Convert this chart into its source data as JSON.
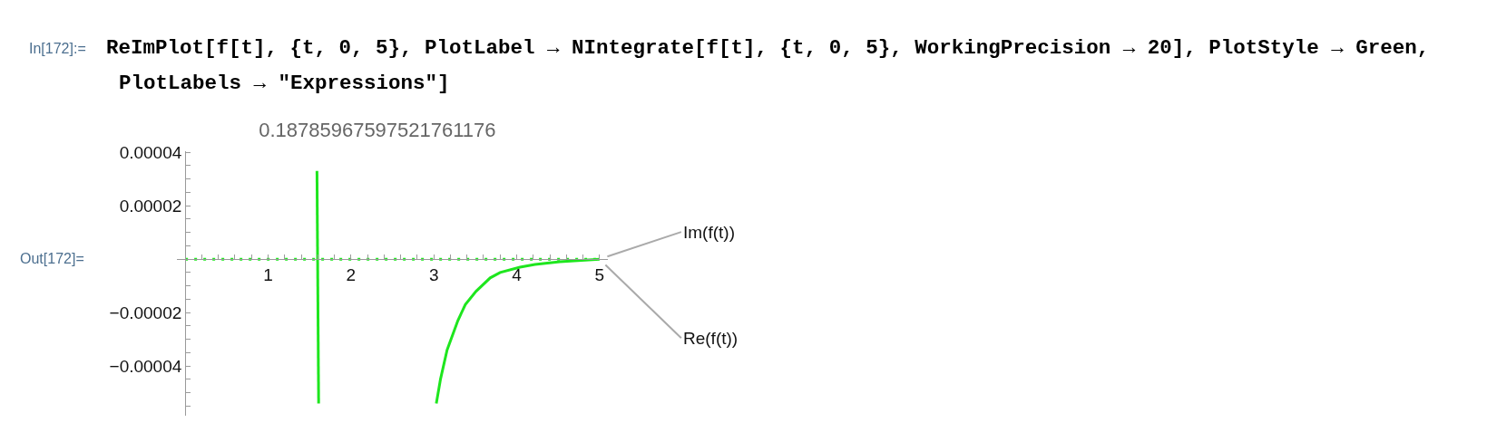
{
  "chart_data": {
    "type": "line",
    "title": "0.18785967597521761176",
    "annotations": [
      "In[172]:=",
      "ReImPlot[f[t], {t, 0, 5}, PlotLabel → NIntegrate[f[t], {t, 0, 5}, WorkingPrecision → 20], PlotStyle → Green,",
      "PlotLabels → \"Expressions\"]",
      "Out[172]="
    ],
    "xlim": [
      -0.1,
      5.1
    ],
    "xticks": [
      {
        "value": 0.2,
        "label": null
      },
      {
        "value": 0.4,
        "label": null
      },
      {
        "value": 0.6,
        "label": null
      },
      {
        "value": 0.8,
        "label": null
      },
      1,
      {
        "value": 1.2,
        "label": null
      },
      {
        "value": 1.4,
        "label": null
      },
      {
        "value": 1.6,
        "label": null
      },
      {
        "value": 1.8,
        "label": null
      },
      2,
      {
        "value": 2.2,
        "label": null
      },
      {
        "value": 2.4,
        "label": null
      },
      {
        "value": 2.6,
        "label": null
      },
      {
        "value": 2.8,
        "label": null
      },
      3,
      {
        "value": 3.2,
        "label": null
      },
      {
        "value": 3.4,
        "label": null
      },
      {
        "value": 3.6,
        "label": null
      },
      {
        "value": 3.8,
        "label": null
      },
      4,
      {
        "value": 4.2,
        "label": null
      },
      {
        "value": 4.4,
        "label": null
      },
      {
        "value": 4.6,
        "label": null
      },
      {
        "value": 4.8,
        "label": null
      },
      5
    ],
    "ylim": [
      -5.86e-05,
      4.04e-05
    ],
    "yticks": [
      {
        "value": -5.5e-05,
        "label": null
      },
      {
        "value": -5e-05,
        "label": null
      },
      {
        "value": -4.5e-05,
        "label": null
      },
      {
        "value": -4e-05,
        "label": "−0.00004"
      },
      {
        "value": -3.5e-05,
        "label": null
      },
      {
        "value": -3e-05,
        "label": null
      },
      {
        "value": -2.5e-05,
        "label": null
      },
      {
        "value": -2e-05,
        "label": "−0.00002"
      },
      {
        "value": -1.5e-05,
        "label": null
      },
      {
        "value": -1e-05,
        "label": null
      },
      {
        "value": -5e-06,
        "label": null
      },
      {
        "value": 5e-06,
        "label": null
      },
      {
        "value": 1e-05,
        "label": null
      },
      {
        "value": 1.5e-05,
        "label": null
      },
      {
        "value": 2e-05,
        "label": "0.00002"
      },
      {
        "value": 2.5e-05,
        "label": null
      },
      {
        "value": 3e-05,
        "label": null
      },
      {
        "value": 3.5e-05,
        "label": null
      },
      {
        "value": 4e-05,
        "label": "0.00004"
      }
    ],
    "series": [
      {
        "name": "Im(f(t))",
        "color": "#1ee61e",
        "line_style": "dashed",
        "x": [
          0,
          5
        ],
        "values": [
          0,
          0
        ]
      },
      {
        "name": "Re(f(t))",
        "color": "#1ee61e",
        "line_style": "solid",
        "x": [
          1.59,
          1.61,
          2.3,
          3.03,
          3.08,
          3.16,
          3.29,
          3.38,
          3.51,
          3.68,
          3.8,
          4.04,
          4.22,
          4.52,
          5
        ],
        "values": [
          3.3e-05,
          -5.4e-05,
          null,
          -5.4e-05,
          -4.5e-05,
          -3.4e-05,
          -2.3e-05,
          -1.7e-05,
          -1.2e-05,
          -7e-06,
          -5e-06,
          -3e-06,
          -2e-06,
          -1e-06,
          0
        ]
      }
    ]
  }
}
